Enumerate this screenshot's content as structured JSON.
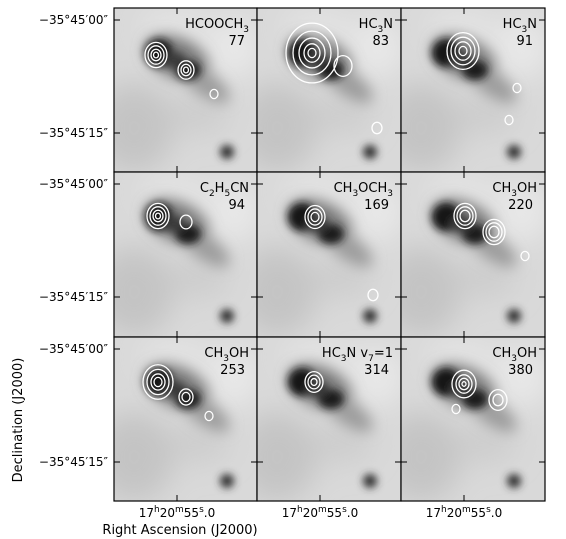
{
  "figure": {
    "x_axis_title": "Right Ascension (J2000)",
    "y_axis_title": "Declination (J2000)",
    "dec_ticks": [
      "−35°45′00″",
      "−35°45′15″"
    ],
    "ra_tick": {
      "h": "17",
      "m": "20",
      "s": "55",
      "frac": "0"
    },
    "colors": {
      "contour": "#ffffff",
      "frame": "#000000",
      "background": "#ffffff"
    }
  },
  "panels": [
    {
      "species": "HCOOCH3",
      "number": "77"
    },
    {
      "species": "HC3N",
      "number": "83"
    },
    {
      "species": "HC3N",
      "number": "91"
    },
    {
      "species": "C2H5CN",
      "number": "94"
    },
    {
      "species": "CH3OCH3",
      "number": "169"
    },
    {
      "species": "CH3OH",
      "number": "220"
    },
    {
      "species": "CH3OH",
      "number": "253"
    },
    {
      "species": "HC3N v7=1",
      "number": "314"
    },
    {
      "species": "CH3OH",
      "number": "380"
    }
  ]
}
